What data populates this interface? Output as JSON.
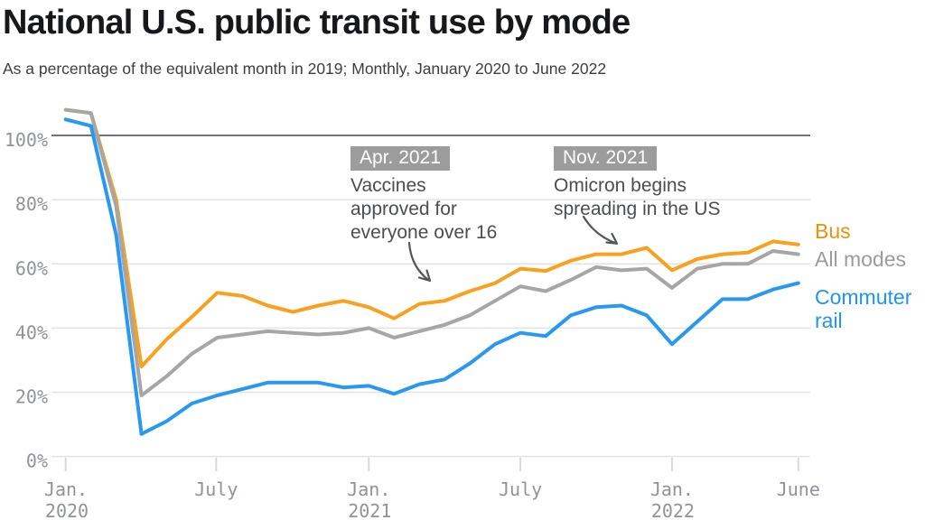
{
  "header": {
    "title": "National U.S. public transit use by mode",
    "subtitle": "As a percentage of the equivalent month in 2019; Monthly, January 2020 to June 2022"
  },
  "legend": {
    "items": [
      {
        "label": "Bus",
        "color": "#ee8f0a"
      },
      {
        "label": "All modes",
        "color": "#9b9b9b"
      },
      {
        "label": "Commuter rail",
        "color": "#1c96f3"
      }
    ]
  },
  "annotations": [
    {
      "badge": "Apr. 2021",
      "lines": [
        "Vaccines",
        "approved for",
        "everyone over 16"
      ]
    },
    {
      "badge": "Nov. 2021",
      "lines": [
        "Omicron begins",
        "spreading in the US"
      ]
    }
  ],
  "y_axis": {
    "tick_labels": [
      "100%",
      "80%",
      "60%",
      "40%",
      "20%",
      "0%"
    ]
  },
  "x_axis": {
    "ticks": [
      {
        "line1": "Jan.",
        "line2": "2020"
      },
      {
        "line1": "July",
        "line2": ""
      },
      {
        "line1": "Jan.",
        "line2": "2021"
      },
      {
        "line1": "July",
        "line2": ""
      },
      {
        "line1": "Jan.",
        "line2": "2022"
      },
      {
        "line1": "June",
        "line2": ""
      }
    ]
  },
  "chart_data": {
    "type": "line",
    "title": "National U.S. public transit use by mode",
    "subtitle": "As a percentage of the equivalent month in 2019; Monthly, January 2020 to June 2022",
    "unit": "% of equivalent 2019 month",
    "ylim": [
      0,
      110
    ],
    "y_gridlines": [
      0,
      20,
      40,
      60,
      80,
      100
    ],
    "grid": true,
    "legend_position": "right",
    "x": [
      "Jan 2020",
      "Feb 2020",
      "Mar 2020",
      "Apr 2020",
      "May 2020",
      "Jun 2020",
      "Jul 2020",
      "Aug 2020",
      "Sep 2020",
      "Oct 2020",
      "Nov 2020",
      "Dec 2020",
      "Jan 2021",
      "Feb 2021",
      "Mar 2021",
      "Apr 2021",
      "May 2021",
      "Jun 2021",
      "Jul 2021",
      "Aug 2021",
      "Sep 2021",
      "Oct 2021",
      "Nov 2021",
      "Dec 2021",
      "Jan 2022",
      "Feb 2022",
      "Mar 2022",
      "Apr 2022",
      "May 2022",
      "Jun 2022"
    ],
    "series": [
      {
        "name": "Bus",
        "color": "#f9a11e",
        "values": [
          108,
          107,
          80,
          28,
          36.5,
          43.5,
          51,
          50,
          47,
          45,
          47,
          48.5,
          46.5,
          43,
          47.5,
          48.5,
          51.5,
          54,
          58.5,
          57.8,
          61,
          63,
          63,
          65,
          58,
          61.5,
          63,
          63.5,
          67,
          66
        ]
      },
      {
        "name": "All modes",
        "color": "#a6a6a6",
        "values": [
          108,
          107,
          78,
          19,
          25,
          32,
          37,
          38,
          39,
          38.5,
          38,
          38.5,
          40,
          37,
          39,
          41,
          44,
          48.5,
          53,
          51.5,
          55,
          59,
          58,
          58.5,
          52.5,
          58.5,
          60,
          60,
          64,
          63
        ]
      },
      {
        "name": "Commuter rail",
        "color": "#2898f0",
        "values": [
          105,
          103,
          69,
          7,
          11,
          16.5,
          19,
          21,
          23,
          23,
          23,
          21.5,
          22,
          19.5,
          22.5,
          24,
          29,
          35,
          38.5,
          37.5,
          44,
          46.5,
          47,
          44,
          35,
          42,
          49,
          49,
          52,
          54
        ]
      }
    ],
    "event_annotations": [
      {
        "x": "Apr 2021",
        "label": "Apr. 2021 — Vaccines approved for everyone over 16"
      },
      {
        "x": "Nov 2021",
        "label": "Nov. 2021 — Omicron begins spreading in the US"
      }
    ]
  }
}
